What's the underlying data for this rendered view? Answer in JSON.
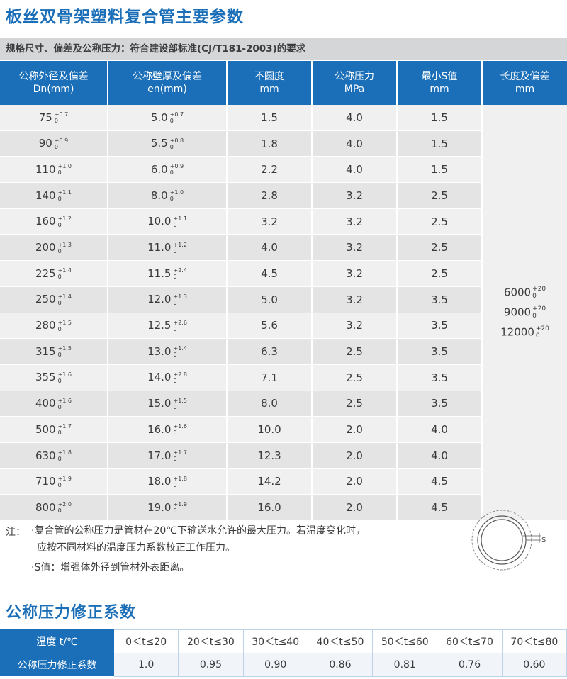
{
  "title": "板丝双骨架塑料复合管主要参数",
  "subtitle": "规格尺寸、偏差及公称压力：符合建设部标准(CJ/T181-2003)的要求",
  "spec_table": {
    "headers": [
      {
        "line1": "公称外径及偏差",
        "line2": "Dn(mm)"
      },
      {
        "line1": "公称壁厚及偏差",
        "line2": "en(mm)"
      },
      {
        "line1": "不圆度",
        "line2": "mm"
      },
      {
        "line1": "公称压力",
        "line2": "MPa"
      },
      {
        "line1": "最小S值",
        "line2": "mm"
      },
      {
        "line1": "长度及偏差",
        "line2": "mm"
      }
    ],
    "rows": [
      {
        "dn": "75",
        "dn_tol_up": "+0.7",
        "dn_tol_low": "0",
        "en": "5.0",
        "en_tol_up": "+0.7",
        "en_tol_low": "0",
        "ovality": "1.5",
        "pressure": "4.0",
        "min_s": "1.5"
      },
      {
        "dn": "90",
        "dn_tol_up": "+0.9",
        "dn_tol_low": "0",
        "en": "5.5",
        "en_tol_up": "+0.8",
        "en_tol_low": "0",
        "ovality": "1.8",
        "pressure": "4.0",
        "min_s": "1.5"
      },
      {
        "dn": "110",
        "dn_tol_up": "+1.0",
        "dn_tol_low": "0",
        "en": "6.0",
        "en_tol_up": "+0.9",
        "en_tol_low": "0",
        "ovality": "2.2",
        "pressure": "4.0",
        "min_s": "1.5"
      },
      {
        "dn": "140",
        "dn_tol_up": "+1.1",
        "dn_tol_low": "0",
        "en": "8.0",
        "en_tol_up": "+1.0",
        "en_tol_low": "0",
        "ovality": "2.8",
        "pressure": "3.2",
        "min_s": "2.5"
      },
      {
        "dn": "160",
        "dn_tol_up": "+1.2",
        "dn_tol_low": "0",
        "en": "10.0",
        "en_tol_up": "+1.1",
        "en_tol_low": "0",
        "ovality": "3.2",
        "pressure": "3.2",
        "min_s": "2.5"
      },
      {
        "dn": "200",
        "dn_tol_up": "+1.3",
        "dn_tol_low": "0",
        "en": "11.0",
        "en_tol_up": "+1.2",
        "en_tol_low": "0",
        "ovality": "4.0",
        "pressure": "3.2",
        "min_s": "2.5"
      },
      {
        "dn": "225",
        "dn_tol_up": "+1.4",
        "dn_tol_low": "0",
        "en": "11.5",
        "en_tol_up": "+2.4",
        "en_tol_low": "0",
        "ovality": "4.5",
        "pressure": "3.2",
        "min_s": "2.5"
      },
      {
        "dn": "250",
        "dn_tol_up": "+1.4",
        "dn_tol_low": "0",
        "en": "12.0",
        "en_tol_up": "+1.3",
        "en_tol_low": "0",
        "ovality": "5.0",
        "pressure": "3.2",
        "min_s": "3.5"
      },
      {
        "dn": "280",
        "dn_tol_up": "+1.5",
        "dn_tol_low": "0",
        "en": "12.5",
        "en_tol_up": "+2.6",
        "en_tol_low": "0",
        "ovality": "5.6",
        "pressure": "3.2",
        "min_s": "3.5"
      },
      {
        "dn": "315",
        "dn_tol_up": "+1.5",
        "dn_tol_low": "0",
        "en": "13.0",
        "en_tol_up": "+1.4",
        "en_tol_low": "0",
        "ovality": "6.3",
        "pressure": "2.5",
        "min_s": "3.5"
      },
      {
        "dn": "355",
        "dn_tol_up": "+1.6",
        "dn_tol_low": "0",
        "en": "14.0",
        "en_tol_up": "+2.8",
        "en_tol_low": "0",
        "ovality": "7.1",
        "pressure": "2.5",
        "min_s": "3.5"
      },
      {
        "dn": "400",
        "dn_tol_up": "+1.6",
        "dn_tol_low": "0",
        "en": "15.0",
        "en_tol_up": "+1.5",
        "en_tol_low": "0",
        "ovality": "8.0",
        "pressure": "2.5",
        "min_s": "3.5"
      },
      {
        "dn": "500",
        "dn_tol_up": "+1.7",
        "dn_tol_low": "0",
        "en": "16.0",
        "en_tol_up": "+1.6",
        "en_tol_low": "0",
        "ovality": "10.0",
        "pressure": "2.0",
        "min_s": "4.0"
      },
      {
        "dn": "630",
        "dn_tol_up": "+1.8",
        "dn_tol_low": "0",
        "en": "17.0",
        "en_tol_up": "+1.7",
        "en_tol_low": "0",
        "ovality": "12.3",
        "pressure": "2.0",
        "min_s": "4.0"
      },
      {
        "dn": "710",
        "dn_tol_up": "+1.9",
        "dn_tol_low": "0",
        "en": "18.0",
        "en_tol_up": "+1.8",
        "en_tol_low": "0",
        "ovality": "14.2",
        "pressure": "2.0",
        "min_s": "4.5"
      },
      {
        "dn": "800",
        "dn_tol_up": "+2.0",
        "dn_tol_low": "0",
        "en": "19.0",
        "en_tol_up": "+1.9",
        "en_tol_low": "0",
        "ovality": "16.0",
        "pressure": "2.0",
        "min_s": "4.5"
      }
    ],
    "lengths": [
      {
        "value": "6000",
        "tol_up": "+20",
        "tol_low": "0"
      },
      {
        "value": "9000",
        "tol_up": "+20",
        "tol_low": "0"
      },
      {
        "value": "12000",
        "tol_up": "+20",
        "tol_low": "0"
      }
    ]
  },
  "notes": {
    "label": "注：",
    "line1": "·复合管的公称压力是管材在20℃下输送水允许的最大压力。若温度变化时，",
    "line2": "应按不同材料的温度压力系数校正工作压力。",
    "line3": "·S值：增强体外径到管材外表距离。",
    "diagram_label": "S"
  },
  "coef_section": {
    "title": "公称压力修正系数",
    "temp_label": "温度 t/℃",
    "coef_label": "公称压力修正系数",
    "temps": [
      "0＜t≤20",
      "20＜t≤30",
      "30＜t≤40",
      "40＜t≤50",
      "50＜t≤60",
      "60＜t≤70",
      "70＜t≤80"
    ],
    "coefs": [
      "1.0",
      "0.95",
      "0.90",
      "0.86",
      "0.81",
      "0.76",
      "0.60"
    ]
  },
  "colors": {
    "accent": "#1b6fb8",
    "row_light": "#f0f0f0",
    "row_dark": "#e4e4e4",
    "subtitle_bg": "#d5d6d8"
  }
}
